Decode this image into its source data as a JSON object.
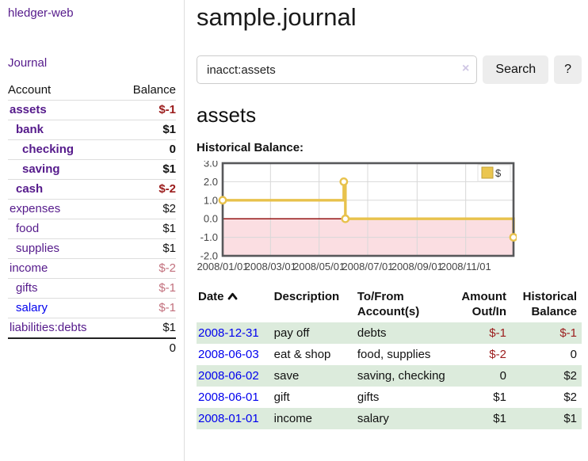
{
  "colors": {
    "link_visited": "#551a8b",
    "link_unvisited": "#0000ee",
    "negative_strong": "#9b1c1c",
    "negative_soft": "#c2707d",
    "row_stripe_green": "#dcebdc",
    "chart_line_gold": "#e8c24c",
    "chart_negative_region_pink": "#fbdee2",
    "chart_zero_line_red": "#8b0000",
    "chart_border_gray": "#57585a",
    "grid_gray": "#d8d8d8"
  },
  "brand": "hledger-web",
  "nav": {
    "journal": "Journal"
  },
  "page": {
    "title": "sample.journal"
  },
  "search": {
    "value": "inacct:assets",
    "clear": "×",
    "submit": "Search",
    "help": "?"
  },
  "sidebar": {
    "header": {
      "account": "Account",
      "balance": "Balance"
    },
    "accounts": [
      {
        "name": "assets",
        "balance": "$-1",
        "indent": 0,
        "bold": true,
        "link": "visited"
      },
      {
        "name": "bank",
        "balance": "$1",
        "indent": 1,
        "bold": true,
        "link": "visited"
      },
      {
        "name": "checking",
        "balance": "0",
        "indent": 2,
        "bold": true,
        "link": "visited"
      },
      {
        "name": "saving",
        "balance": "$1",
        "indent": 2,
        "bold": true,
        "link": "visited"
      },
      {
        "name": "cash",
        "balance": "$-2",
        "indent": 1,
        "bold": true,
        "link": "visited"
      },
      {
        "name": "expenses",
        "balance": "$2",
        "indent": 0,
        "bold": false,
        "link": "visited"
      },
      {
        "name": "food",
        "balance": "$1",
        "indent": 1,
        "bold": false,
        "link": "visited"
      },
      {
        "name": "supplies",
        "balance": "$1",
        "indent": 1,
        "bold": false,
        "link": "visited"
      },
      {
        "name": "income",
        "balance": "$-2",
        "indent": 0,
        "bold": false,
        "link": "visited"
      },
      {
        "name": "gifts",
        "balance": "$-1",
        "indent": 1,
        "bold": false,
        "link": "visited"
      },
      {
        "name": "salary",
        "balance": "$-1",
        "indent": 1,
        "bold": false,
        "link": "unvisited"
      },
      {
        "name": "liabilities:debts",
        "balance": "$1",
        "indent": 0,
        "bold": false,
        "link": "visited"
      }
    ],
    "total": "0"
  },
  "account_page": {
    "heading": "assets",
    "chart_title": "Historical Balance:"
  },
  "chart_data": {
    "type": "line",
    "step": true,
    "title": "Historical Balance:",
    "legend": {
      "label": "$",
      "position": "top-right"
    },
    "x_range": [
      "2008-01-01",
      "2008-12-31"
    ],
    "ylim": [
      -2.0,
      3.0
    ],
    "yticks": [
      "3.0",
      "2.0",
      "1.0",
      "0.0",
      "-1.0",
      "-2.0"
    ],
    "xticks": [
      "2008/01/01",
      "2008/03/01",
      "2008/05/01",
      "2008/07/01",
      "2008/09/01",
      "2008/11/01"
    ],
    "series": [
      {
        "name": "$",
        "points": [
          {
            "x": "2008-01-01",
            "y": 1
          },
          {
            "x": "2008-06-01",
            "y": 2
          },
          {
            "x": "2008-06-03",
            "y": 0
          },
          {
            "x": "2008-12-31",
            "y": -1
          }
        ]
      }
    ],
    "grid": true,
    "negative_region": true
  },
  "register": {
    "headers": {
      "date": "Date",
      "description": "Description",
      "accounts": "To/From Account(s)",
      "amount": "Amount Out/In",
      "balance": "Historical Balance"
    },
    "rows": [
      {
        "date": "2008-12-31",
        "description": "pay off",
        "accounts": "debts",
        "amount": "$-1",
        "balance": "$-1"
      },
      {
        "date": "2008-06-03",
        "description": "eat & shop",
        "accounts": "food, supplies",
        "amount": "$-2",
        "balance": "0"
      },
      {
        "date": "2008-06-02",
        "description": "save",
        "accounts": "saving, checking",
        "amount": "0",
        "balance": "$2"
      },
      {
        "date": "2008-06-01",
        "description": "gift",
        "accounts": "gifts",
        "amount": "$1",
        "balance": "$2"
      },
      {
        "date": "2008-01-01",
        "description": "income",
        "accounts": "salary",
        "amount": "$1",
        "balance": "$1"
      }
    ]
  }
}
